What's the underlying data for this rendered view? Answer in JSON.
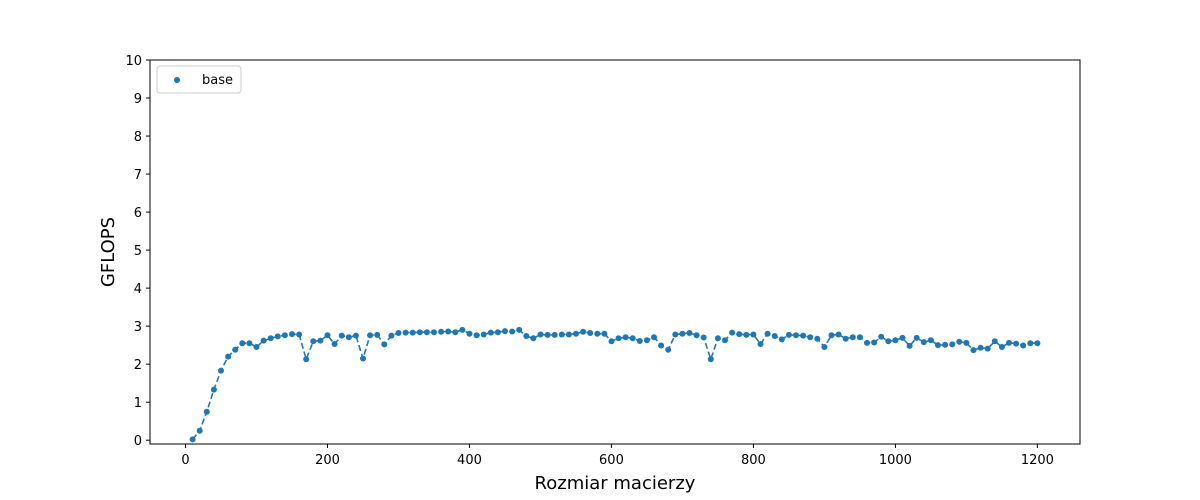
{
  "chart_data": {
    "type": "line",
    "xlabel": "Rozmiar macierzy",
    "ylabel": "GFLOPS",
    "xlim": [
      -50,
      1260
    ],
    "ylim": [
      -0.1,
      10
    ],
    "xticks": [
      0,
      200,
      400,
      600,
      800,
      1000,
      1200
    ],
    "yticks": [
      0,
      1,
      2,
      3,
      4,
      5,
      6,
      7,
      8,
      9,
      10
    ],
    "grid": false,
    "legend_position": "top-left",
    "series": [
      {
        "name": "base",
        "color": "#1f77b4",
        "marker": "circle",
        "line_style": "dashed",
        "x": [
          10,
          20,
          30,
          40,
          50,
          60,
          70,
          80,
          90,
          100,
          110,
          120,
          130,
          140,
          150,
          160,
          170,
          180,
          190,
          200,
          210,
          220,
          230,
          240,
          250,
          260,
          270,
          280,
          290,
          300,
          310,
          320,
          330,
          340,
          350,
          360,
          370,
          380,
          390,
          400,
          410,
          420,
          430,
          440,
          450,
          460,
          470,
          480,
          490,
          500,
          510,
          520,
          530,
          540,
          550,
          560,
          570,
          580,
          590,
          600,
          610,
          620,
          630,
          640,
          650,
          660,
          670,
          680,
          690,
          700,
          710,
          720,
          730,
          740,
          750,
          760,
          770,
          780,
          790,
          800,
          810,
          820,
          830,
          840,
          850,
          860,
          870,
          880,
          890,
          900,
          910,
          920,
          930,
          940,
          950,
          960,
          970,
          980,
          990,
          1000,
          1010,
          1020,
          1030,
          1040,
          1050,
          1060,
          1070,
          1080,
          1090,
          1100,
          1110,
          1120,
          1130,
          1140,
          1150,
          1160,
          1170,
          1180,
          1190,
          1200
        ],
        "y": [
          0.02,
          0.25,
          0.75,
          1.33,
          1.83,
          2.2,
          2.38,
          2.55,
          2.55,
          2.45,
          2.62,
          2.68,
          2.73,
          2.76,
          2.79,
          2.78,
          2.13,
          2.6,
          2.62,
          2.76,
          2.53,
          2.75,
          2.71,
          2.75,
          2.15,
          2.76,
          2.77,
          2.52,
          2.75,
          2.82,
          2.83,
          2.83,
          2.84,
          2.84,
          2.84,
          2.85,
          2.86,
          2.84,
          2.9,
          2.8,
          2.76,
          2.78,
          2.83,
          2.84,
          2.87,
          2.86,
          2.9,
          2.74,
          2.68,
          2.78,
          2.77,
          2.77,
          2.78,
          2.78,
          2.8,
          2.85,
          2.82,
          2.8,
          2.8,
          2.6,
          2.68,
          2.71,
          2.68,
          2.61,
          2.63,
          2.71,
          2.49,
          2.38,
          2.78,
          2.8,
          2.82,
          2.76,
          2.7,
          2.13,
          2.68,
          2.63,
          2.83,
          2.79,
          2.77,
          2.78,
          2.53,
          2.8,
          2.74,
          2.65,
          2.77,
          2.76,
          2.75,
          2.71,
          2.67,
          2.45,
          2.76,
          2.78,
          2.67,
          2.71,
          2.71,
          2.56,
          2.57,
          2.72,
          2.6,
          2.63,
          2.69,
          2.48,
          2.69,
          2.58,
          2.63,
          2.5,
          2.51,
          2.52,
          2.59,
          2.56,
          2.37,
          2.43,
          2.41,
          2.6,
          2.45,
          2.56,
          2.54,
          2.49,
          2.55,
          2.55
        ]
      }
    ]
  }
}
